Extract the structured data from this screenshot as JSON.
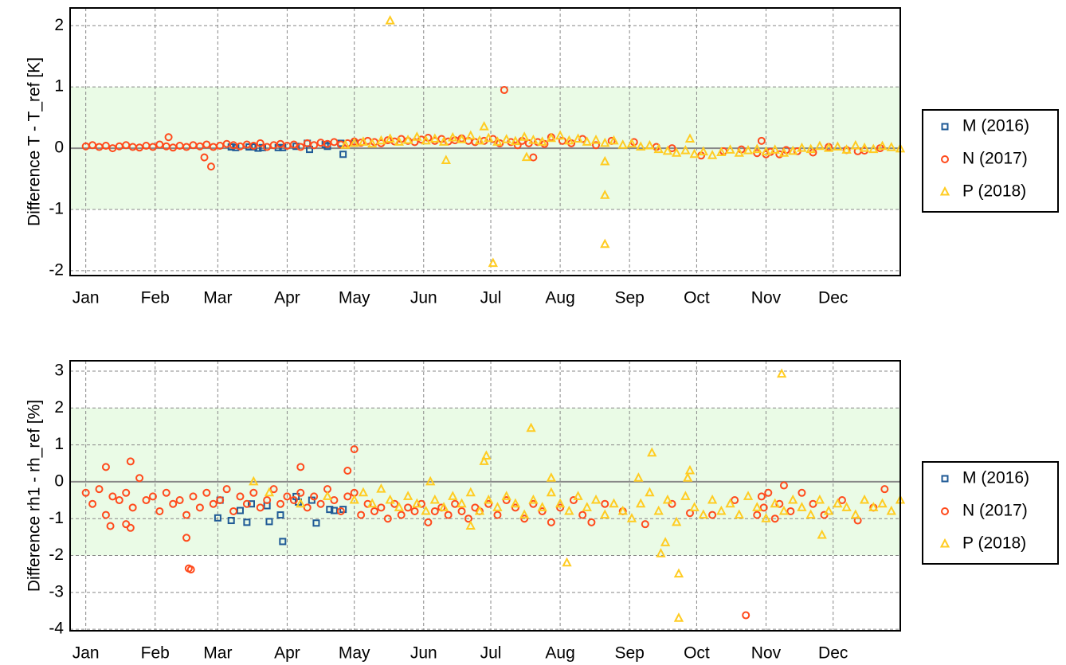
{
  "chart_data": [
    {
      "type": "scatter",
      "y_label": "Difference T - T_ref [K]",
      "xlim": [
        -7,
        364
      ],
      "xticks": [
        {
          "value": 0,
          "label": "Jan"
        },
        {
          "value": 31,
          "label": "Feb"
        },
        {
          "value": 59,
          "label": "Mar"
        },
        {
          "value": 90,
          "label": "Apr"
        },
        {
          "value": 120,
          "label": "May"
        },
        {
          "value": 151,
          "label": "Jun"
        },
        {
          "value": 181,
          "label": "Jul"
        },
        {
          "value": 212,
          "label": "Aug"
        },
        {
          "value": 243,
          "label": "Sep"
        },
        {
          "value": 273,
          "label": "Oct"
        },
        {
          "value": 304,
          "label": "Nov"
        },
        {
          "value": 334,
          "label": "Dec"
        }
      ],
      "ylim": [
        -2.08,
        2.29
      ],
      "yticks": [
        -2,
        -1,
        0,
        1,
        2
      ],
      "band": [
        -1,
        1
      ],
      "reference": 0,
      "grid": true,
      "legend": "right",
      "series": [
        {
          "name": "M (2016)",
          "color": "#1f5a96",
          "marker": "square",
          "x": [
            65,
            67,
            73,
            75,
            77,
            79,
            86,
            88,
            94,
            99,
            100,
            107,
            108,
            114,
            115,
            120
          ],
          "values": [
            0.02,
            0.01,
            0.02,
            0.02,
            0.0,
            0.01,
            0.01,
            0.01,
            0.03,
            0.08,
            -0.02,
            0.06,
            0.03,
            0.08,
            -0.1,
            0.08
          ]
        },
        {
          "name": "N (2017)",
          "color": "#ff4a1c",
          "marker": "circle",
          "x": [
            0,
            3,
            6,
            9,
            12,
            15,
            18,
            21,
            24,
            27,
            30,
            33,
            36,
            39,
            42,
            45,
            48,
            51,
            54,
            57,
            60,
            63,
            66,
            69,
            72,
            75,
            78,
            81,
            84,
            87,
            90,
            93,
            96,
            99,
            102,
            105,
            108,
            111,
            114,
            117,
            120,
            123,
            126,
            129,
            132,
            135,
            138,
            141,
            144,
            147,
            150,
            153,
            156,
            159,
            162,
            165,
            168,
            171,
            174,
            37,
            53,
            56,
            178,
            182,
            185,
            187,
            190,
            193,
            195,
            198,
            200,
            202,
            205,
            208,
            213,
            217,
            222,
            228,
            235,
            245,
            255,
            262,
            275,
            285,
            293,
            300,
            302,
            304,
            306,
            310,
            313,
            318,
            325,
            332,
            340,
            345,
            348,
            355
          ],
          "values": [
            0.03,
            0.05,
            0.02,
            0.04,
            0.0,
            0.03,
            0.05,
            0.02,
            0.01,
            0.04,
            0.02,
            0.06,
            0.03,
            0.01,
            0.04,
            0.02,
            0.05,
            0.03,
            0.06,
            0.02,
            0.04,
            0.07,
            0.05,
            0.03,
            0.06,
            0.04,
            0.08,
            0.02,
            0.05,
            0.07,
            0.04,
            0.06,
            0.02,
            0.08,
            0.05,
            0.09,
            0.07,
            0.1,
            0.06,
            0.08,
            0.11,
            0.09,
            0.12,
            0.1,
            0.08,
            0.13,
            0.11,
            0.15,
            0.12,
            0.1,
            0.14,
            0.17,
            0.12,
            0.15,
            0.11,
            0.13,
            0.16,
            0.12,
            0.1,
            0.18,
            -0.15,
            -0.3,
            0.12,
            0.15,
            0.08,
            0.95,
            0.1,
            0.05,
            0.12,
            0.08,
            -0.15,
            0.1,
            0.07,
            0.18,
            0.12,
            0.08,
            0.15,
            0.05,
            0.12,
            0.1,
            0.02,
            0.0,
            -0.12,
            -0.05,
            -0.02,
            -0.08,
            0.12,
            -0.1,
            -0.06,
            -0.1,
            -0.03,
            -0.05,
            -0.07,
            0.02,
            -0.03,
            -0.05,
            -0.04,
            0.0
          ]
        },
        {
          "name": "P (2018)",
          "color": "#ffcc22",
          "marker": "triangle",
          "x": [
            116,
            120,
            124,
            128,
            132,
            136,
            140,
            144,
            148,
            152,
            156,
            160,
            164,
            168,
            172,
            176,
            180,
            184,
            188,
            192,
            196,
            200,
            204,
            208,
            212,
            216,
            220,
            224,
            228,
            232,
            236,
            240,
            244,
            248,
            252,
            256,
            260,
            264,
            268,
            272,
            276,
            280,
            284,
            288,
            292,
            296,
            300,
            304,
            308,
            312,
            316,
            320,
            324,
            328,
            332,
            336,
            340,
            344,
            348,
            352,
            356,
            360,
            364,
            136,
            161,
            178,
            182,
            197,
            232,
            232,
            232,
            270
          ],
          "values": [
            0.05,
            0.08,
            0.1,
            0.07,
            0.12,
            0.15,
            0.1,
            0.13,
            0.18,
            0.12,
            0.15,
            0.1,
            0.17,
            0.14,
            0.2,
            0.12,
            0.16,
            0.1,
            0.14,
            0.11,
            0.18,
            0.13,
            0.1,
            0.16,
            0.2,
            0.12,
            0.15,
            0.1,
            0.13,
            0.08,
            0.12,
            0.05,
            0.07,
            0.02,
            0.04,
            -0.02,
            -0.05,
            -0.08,
            -0.04,
            -0.1,
            -0.06,
            -0.12,
            -0.07,
            -0.03,
            -0.08,
            -0.04,
            -0.02,
            -0.06,
            -0.03,
            -0.08,
            -0.05,
            0.0,
            -0.02,
            0.03,
            0.0,
            0.02,
            -0.03,
            0.04,
            0.0,
            -0.02,
            0.03,
            0.01,
            -0.01,
            2.08,
            -0.2,
            0.35,
            -1.88,
            -0.15,
            -0.22,
            -0.77,
            -1.57,
            0.15
          ]
        }
      ]
    },
    {
      "type": "scatter",
      "y_label": "Difference rh1 - rh_ref [%]",
      "xlim": [
        -7,
        364
      ],
      "xticks": [
        {
          "value": 0,
          "label": "Jan"
        },
        {
          "value": 31,
          "label": "Feb"
        },
        {
          "value": 59,
          "label": "Mar"
        },
        {
          "value": 90,
          "label": "Apr"
        },
        {
          "value": 120,
          "label": "May"
        },
        {
          "value": 151,
          "label": "Jun"
        },
        {
          "value": 181,
          "label": "Jul"
        },
        {
          "value": 212,
          "label": "Aug"
        },
        {
          "value": 243,
          "label": "Sep"
        },
        {
          "value": 273,
          "label": "Oct"
        },
        {
          "value": 304,
          "label": "Nov"
        },
        {
          "value": 334,
          "label": "Dec"
        }
      ],
      "ylim": [
        -4.04,
        3.28
      ],
      "yticks": [
        -4,
        -3,
        -2,
        -1,
        0,
        1,
        2,
        3
      ],
      "band": [
        -2,
        2
      ],
      "reference": 0,
      "grid": true,
      "legend": "right",
      "series": [
        {
          "name": "M (2016)",
          "color": "#1f5a96",
          "marker": "square",
          "x": [
            59,
            60,
            65,
            69,
            72,
            74,
            81,
            82,
            87,
            88,
            94,
            95,
            101,
            103,
            109,
            111,
            115
          ],
          "values": [
            -0.98,
            -0.5,
            -1.05,
            -0.78,
            -1.1,
            -0.6,
            -0.65,
            -1.08,
            -0.9,
            -1.62,
            -0.4,
            -0.55,
            -0.5,
            -1.12,
            -0.75,
            -0.78,
            -0.75
          ]
        },
        {
          "name": "N (2017)",
          "color": "#ff4a1c",
          "marker": "circle",
          "x": [
            0,
            3,
            6,
            9,
            12,
            15,
            18,
            21,
            24,
            27,
            30,
            33,
            36,
            39,
            42,
            45,
            48,
            51,
            54,
            57,
            60,
            63,
            66,
            69,
            72,
            75,
            78,
            81,
            84,
            87,
            90,
            93,
            96,
            99,
            102,
            105,
            108,
            111,
            114,
            117,
            120,
            123,
            126,
            129,
            132,
            135,
            138,
            141,
            144,
            147,
            150,
            153,
            156,
            159,
            162,
            165,
            168,
            171,
            174,
            9,
            11,
            18,
            20,
            20,
            45,
            46,
            47,
            96,
            120,
            117,
            176,
            180,
            184,
            188,
            192,
            196,
            200,
            204,
            208,
            212,
            218,
            222,
            226,
            232,
            240,
            250,
            262,
            270,
            280,
            290,
            300,
            302,
            303,
            305,
            308,
            310,
            312,
            315,
            320,
            325,
            330,
            338,
            345,
            352,
            357,
            295
          ],
          "values": [
            -0.3,
            -0.6,
            -0.2,
            -0.9,
            -0.4,
            -0.5,
            -0.3,
            -0.7,
            0.1,
            -0.5,
            -0.4,
            -0.8,
            -0.3,
            -0.6,
            -0.5,
            -0.9,
            -0.4,
            -0.7,
            -0.3,
            -0.6,
            -0.5,
            -0.2,
            -0.8,
            -0.4,
            -0.6,
            -0.3,
            -0.7,
            -0.5,
            -0.2,
            -0.6,
            -0.4,
            -0.5,
            -0.3,
            -0.7,
            -0.4,
            -0.6,
            -0.2,
            -0.5,
            -0.8,
            -0.4,
            -0.3,
            -0.9,
            -0.6,
            -0.8,
            -0.7,
            -1.0,
            -0.6,
            -0.9,
            -0.7,
            -0.8,
            -0.6,
            -1.1,
            -0.8,
            -0.7,
            -0.9,
            -0.6,
            -0.8,
            -1.0,
            -0.7,
            0.4,
            -1.2,
            -1.15,
            -1.25,
            0.55,
            -1.52,
            -2.35,
            -2.38,
            0.4,
            0.88,
            0.3,
            -0.8,
            -0.6,
            -0.9,
            -0.5,
            -0.7,
            -1.0,
            -0.6,
            -0.8,
            -1.1,
            -0.7,
            -0.5,
            -0.9,
            -1.1,
            -0.6,
            -0.8,
            -1.15,
            -0.6,
            -0.85,
            -0.9,
            -0.5,
            -0.9,
            -0.4,
            -0.7,
            -0.3,
            -1.0,
            -0.6,
            -0.1,
            -0.8,
            -0.3,
            -0.6,
            -0.9,
            -0.5,
            -1.05,
            -0.7,
            -0.2,
            -3.62
          ]
        },
        {
          "name": "P (2018)",
          "color": "#ffcc22",
          "marker": "triangle",
          "x": [
            120,
            124,
            128,
            132,
            136,
            140,
            144,
            148,
            152,
            156,
            160,
            164,
            168,
            172,
            176,
            180,
            184,
            188,
            192,
            196,
            200,
            204,
            208,
            212,
            216,
            220,
            224,
            228,
            232,
            236,
            240,
            244,
            248,
            252,
            256,
            260,
            264,
            268,
            272,
            276,
            280,
            284,
            288,
            292,
            296,
            300,
            304,
            308,
            312,
            316,
            320,
            324,
            328,
            332,
            336,
            340,
            344,
            348,
            352,
            356,
            360,
            364,
            75,
            82,
            96,
            108,
            179,
            178,
            199,
            215,
            253,
            259,
            257,
            265,
            265,
            269,
            270,
            311,
            329,
            172,
            154,
            208,
            247
          ],
          "values": [
            -0.5,
            -0.3,
            -0.6,
            -0.2,
            -0.5,
            -0.7,
            -0.4,
            -0.6,
            -0.8,
            -0.5,
            -0.7,
            -0.4,
            -0.6,
            -0.3,
            -0.8,
            -0.5,
            -0.7,
            -0.4,
            -0.6,
            -0.9,
            -0.5,
            -0.7,
            -0.3,
            -0.6,
            -0.8,
            -0.4,
            -0.7,
            -0.5,
            -0.9,
            -0.6,
            -0.8,
            -1.0,
            -0.6,
            -0.3,
            -0.8,
            -0.5,
            -1.1,
            -0.4,
            -0.7,
            -0.9,
            -0.5,
            -0.8,
            -0.6,
            -0.9,
            -0.4,
            -0.7,
            -1.0,
            -0.6,
            -0.8,
            -0.5,
            -0.7,
            -0.9,
            -0.5,
            -0.8,
            -0.6,
            -0.7,
            -0.9,
            -0.5,
            -0.7,
            -0.6,
            -0.8,
            -0.5,
            0.0,
            -0.3,
            -0.6,
            -0.4,
            0.7,
            0.55,
            1.45,
            -2.2,
            0.78,
            -1.65,
            -1.95,
            -2.5,
            -3.7,
            0.1,
            0.3,
            2.92,
            -1.45,
            -1.2,
            0.0,
            0.1,
            0.1
          ]
        }
      ]
    }
  ]
}
